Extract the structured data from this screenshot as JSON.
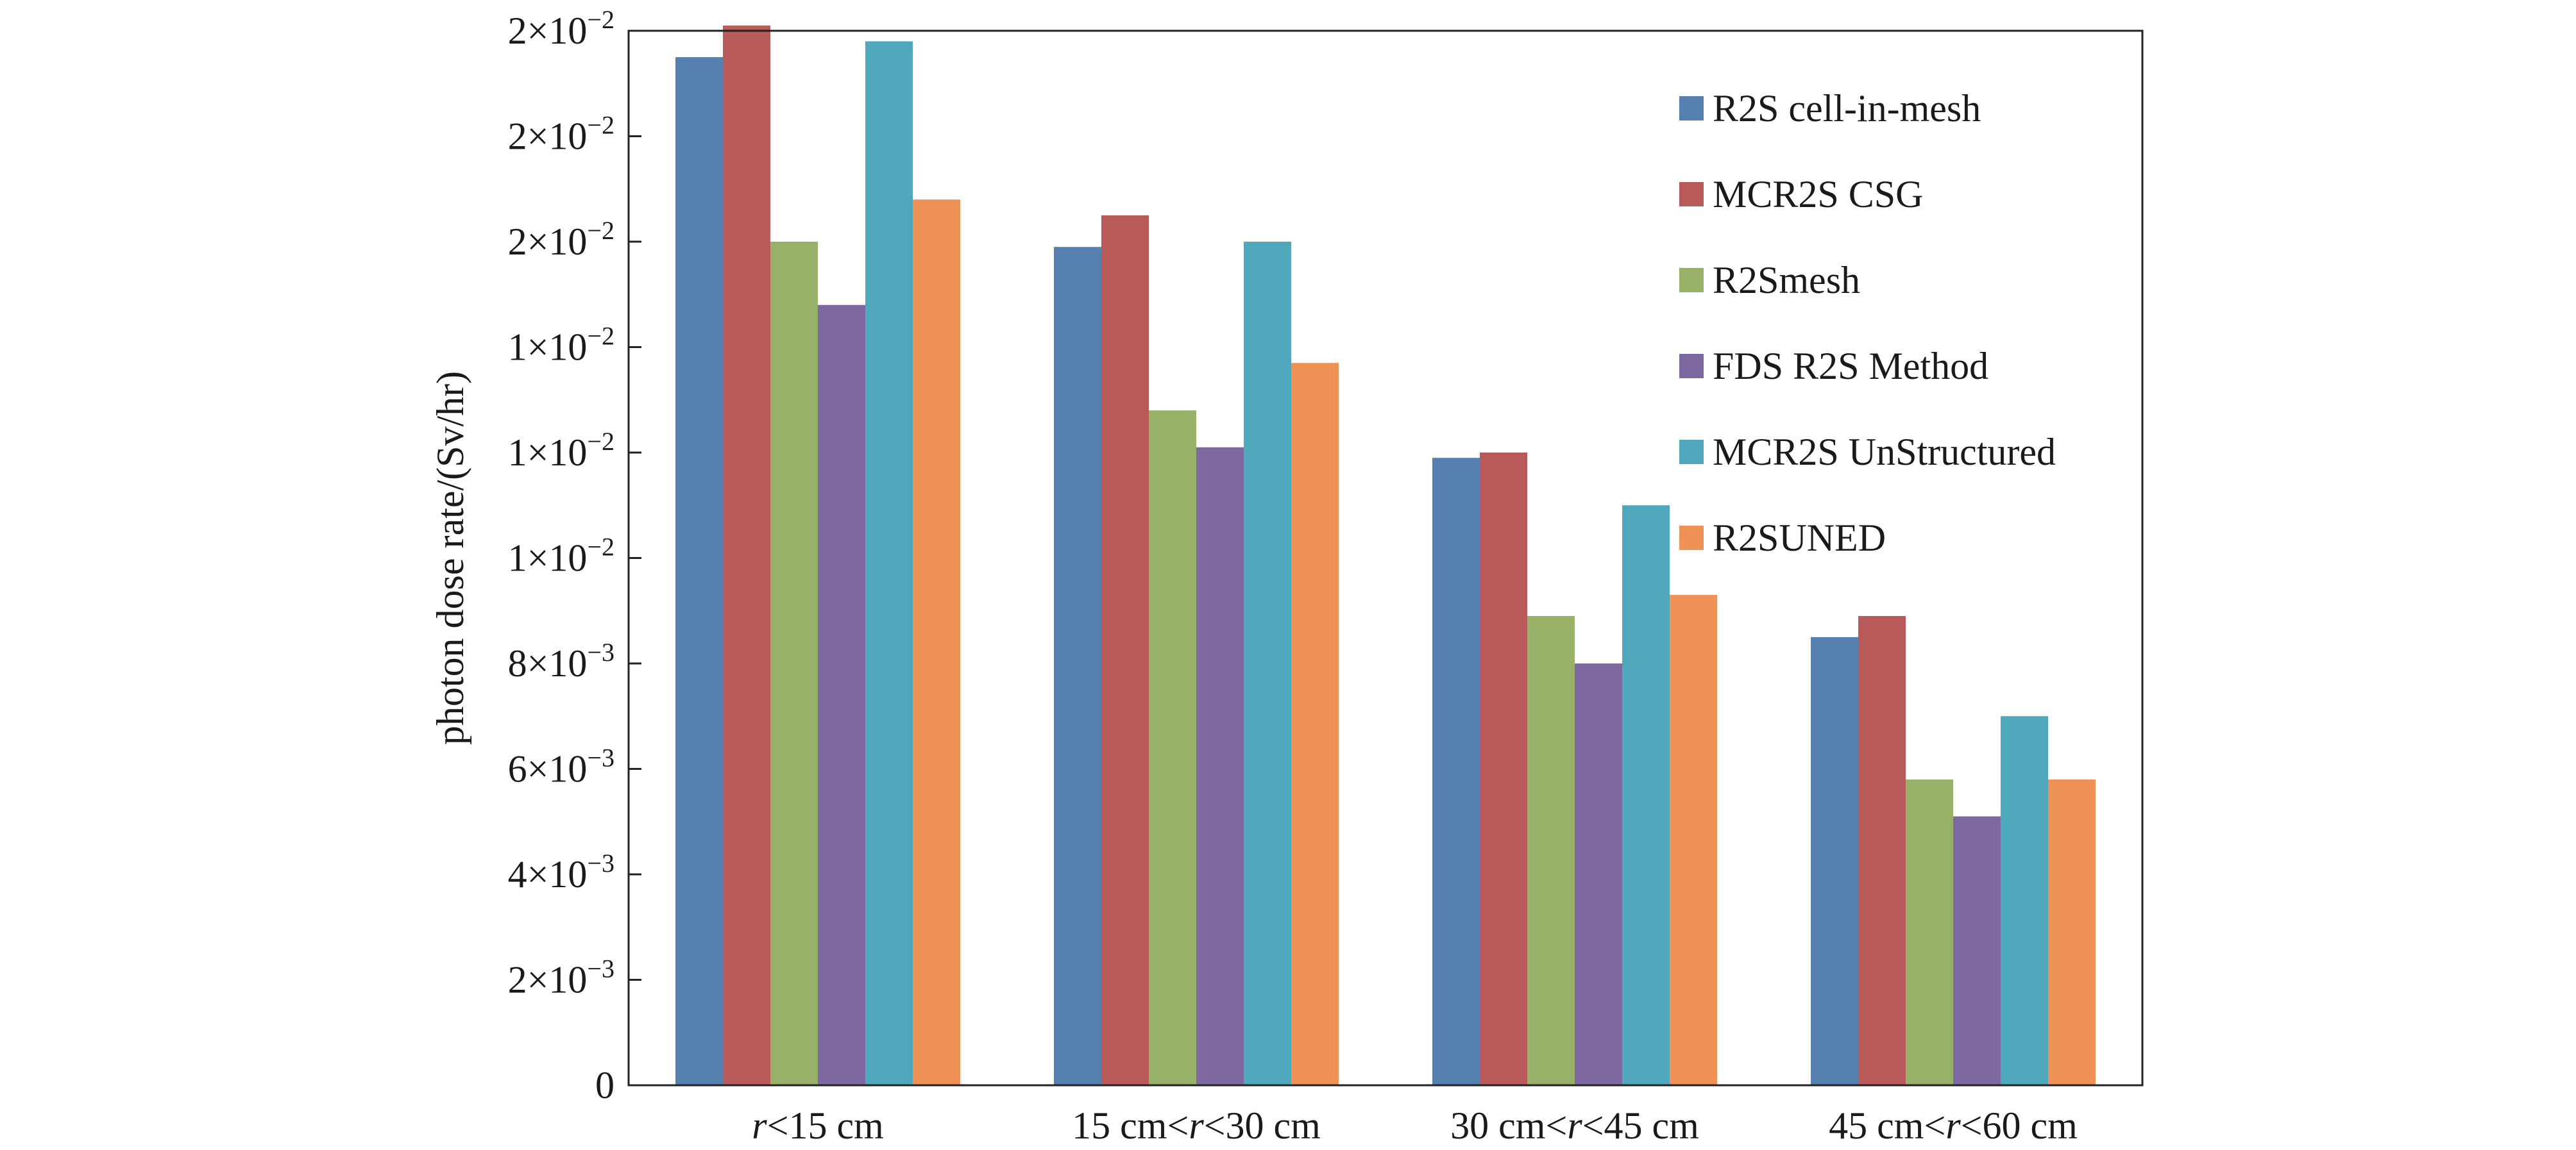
{
  "chart_data": {
    "type": "bar",
    "categories": [
      {
        "pre": "",
        "var": "r",
        "post": "<15 cm"
      },
      {
        "pre": "15 cm<",
        "var": "r",
        "post": "<30 cm"
      },
      {
        "pre": "30 cm<",
        "var": "r",
        "post": "<45 cm"
      },
      {
        "pre": "45 cm<",
        "var": "r",
        "post": "<60 cm"
      }
    ],
    "series": [
      {
        "name": "R2S cell-in-mesh",
        "color": "#5580B0",
        "values": [
          0.0195,
          0.0159,
          0.0119,
          0.0085
        ]
      },
      {
        "name": "MCR2S CSG",
        "color": "#B85A5A",
        "values": [
          0.0201,
          0.0165,
          0.012,
          0.0089
        ]
      },
      {
        "name": "R2Smesh",
        "color": "#97B268",
        "values": [
          0.016,
          0.0128,
          0.0089,
          0.0058
        ]
      },
      {
        "name": "FDS R2S Method",
        "color": "#7D69A0",
        "values": [
          0.0148,
          0.0121,
          0.008,
          0.0051
        ]
      },
      {
        "name": "MCR2S UnStructured",
        "color": "#4FA8BC",
        "values": [
          0.0198,
          0.016,
          0.011,
          0.007
        ]
      },
      {
        "name": "R2SUNED",
        "color": "#EE9258",
        "values": [
          0.0168,
          0.0137,
          0.0093,
          0.0058
        ]
      }
    ],
    "ylabel": "photon dose rate/(Sv/hr)",
    "ylim": [
      0,
      0.02
    ],
    "yticks": [
      {
        "value": 0,
        "mantissa": "0",
        "exp": ""
      },
      {
        "value": 0.002,
        "mantissa": "2×10",
        "exp": "−3"
      },
      {
        "value": 0.004,
        "mantissa": "4×10",
        "exp": "−3"
      },
      {
        "value": 0.006,
        "mantissa": "6×10",
        "exp": "−3"
      },
      {
        "value": 0.008,
        "mantissa": "8×10",
        "exp": "−3"
      },
      {
        "value": 0.01,
        "mantissa": "1×10",
        "exp": "−2"
      },
      {
        "value": 0.012,
        "mantissa": "1×10",
        "exp": "−2"
      },
      {
        "value": 0.014,
        "mantissa": "1×10",
        "exp": "−2"
      },
      {
        "value": 0.016,
        "mantissa": "2×10",
        "exp": "−2"
      },
      {
        "value": 0.018,
        "mantissa": "2×10",
        "exp": "−2"
      },
      {
        "value": 0.02,
        "mantissa": "2×10",
        "exp": "−2"
      }
    ],
    "legend_position": "top-right",
    "grid": false
  }
}
